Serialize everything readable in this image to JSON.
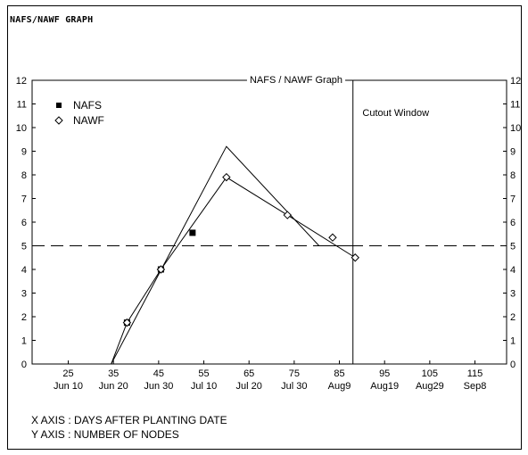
{
  "header": {
    "text": "NAFS/NAWF GRAPH"
  },
  "footer": {
    "x_axis_note": "X AXIS : DAYS AFTER PLANTING DATE",
    "y_axis_note": "Y AXIS : NUMBER OF NODES"
  },
  "chart_data": {
    "type": "line",
    "title": "NAFS / NAWF Graph",
    "xlim": [
      17,
      122
    ],
    "ylim": [
      0,
      12
    ],
    "x_ticks": [
      {
        "value": 25,
        "label": "25",
        "sublabel": "Jun 10"
      },
      {
        "value": 35,
        "label": "35",
        "sublabel": "Jun 20"
      },
      {
        "value": 45,
        "label": "45",
        "sublabel": "Jun 30"
      },
      {
        "value": 55,
        "label": "55",
        "sublabel": "Jul  10"
      },
      {
        "value": 65,
        "label": "65",
        "sublabel": "Jul  20"
      },
      {
        "value": 75,
        "label": "75",
        "sublabel": "Jul  30"
      },
      {
        "value": 85,
        "label": "85",
        "sublabel": "Aug9"
      },
      {
        "value": 95,
        "label": "95",
        "sublabel": "Aug19"
      },
      {
        "value": 105,
        "label": "105",
        "sublabel": "Aug29"
      },
      {
        "value": 115,
        "label": "115",
        "sublabel": "Sep8"
      }
    ],
    "y_ticks": [
      0,
      1,
      2,
      3,
      4,
      5,
      6,
      7,
      8,
      9,
      10,
      11,
      12
    ],
    "series": [
      {
        "name": "NAFS",
        "marker": "filled-square",
        "color": "#000000",
        "x": [
          38,
          45.5,
          52.5
        ],
        "y": [
          1.75,
          4.0,
          5.55
        ]
      },
      {
        "name": "NAWF",
        "marker": "open-diamond",
        "color": "#000000",
        "x": [
          38,
          45.5,
          60,
          73.5,
          83.5,
          88.5
        ],
        "y": [
          1.75,
          4.0,
          7.9,
          6.3,
          5.35,
          4.5
        ]
      }
    ],
    "lines": [
      {
        "kind": "growth-curve",
        "x": [
          34.5,
          60,
          80.5,
          87.5
        ],
        "y": [
          0,
          9.2,
          5.0,
          5.0
        ]
      },
      {
        "kind": "nawf-connector",
        "x": [
          34.5,
          38,
          45.5,
          60,
          73.5,
          88.5
        ],
        "y": [
          0,
          1.75,
          4.0,
          7.9,
          6.3,
          4.5
        ]
      }
    ],
    "reference_line": {
      "y": 5,
      "style": "dashed"
    },
    "cutout_window": {
      "x": 88,
      "label": "Cutout Window"
    },
    "legend": {
      "placement": "top-left"
    },
    "grid": false
  }
}
